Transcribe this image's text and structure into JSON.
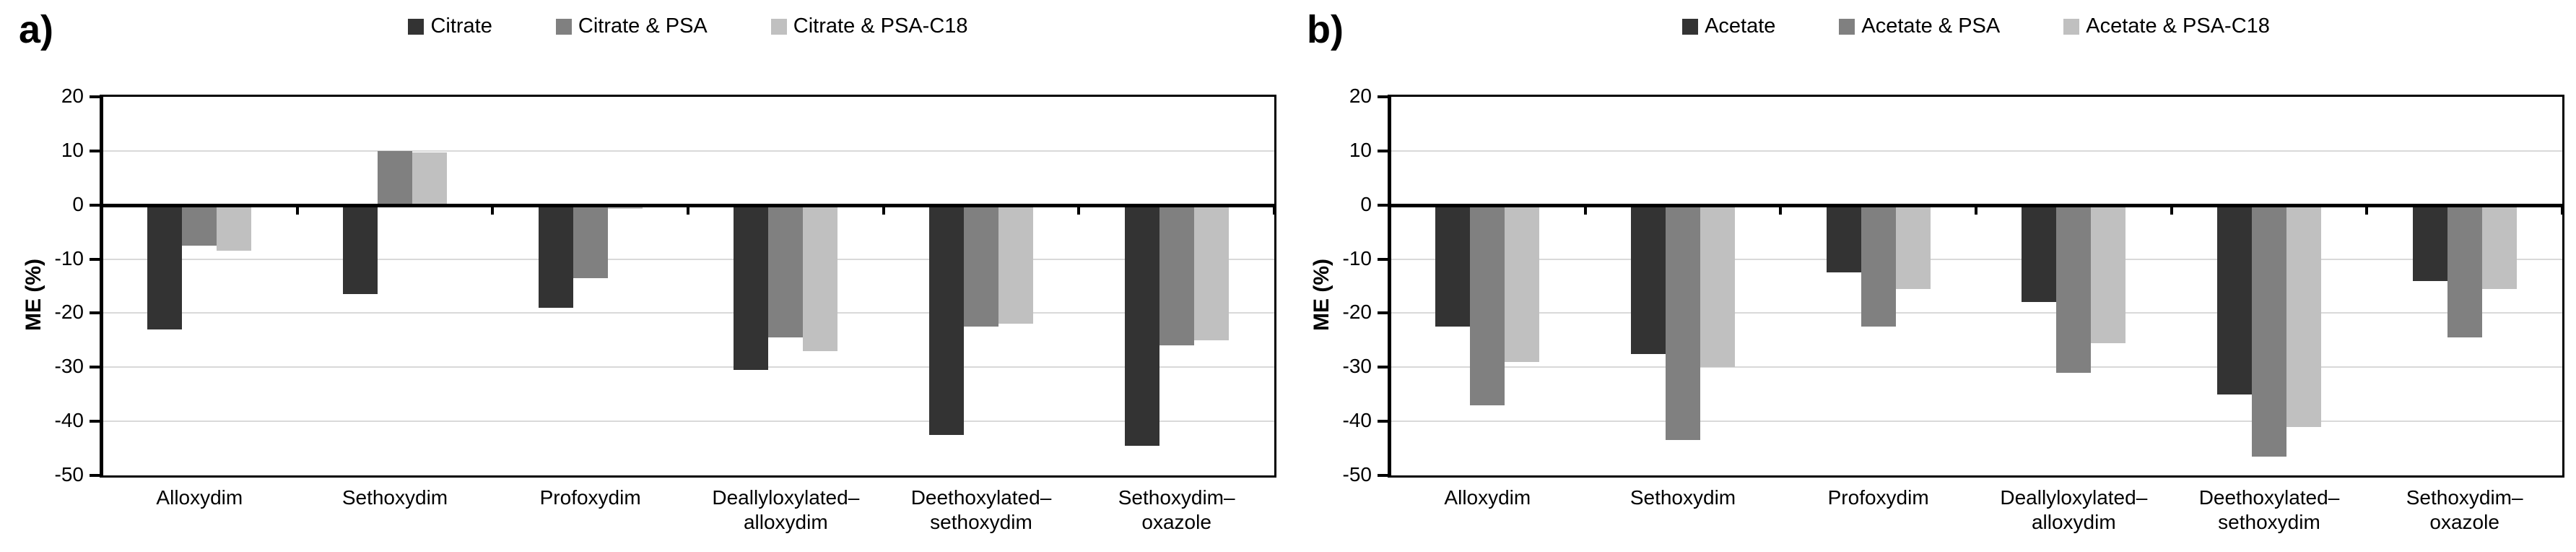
{
  "colors": {
    "series_dark": "#333333",
    "series_mid": "#808080",
    "series_light": "#c0c0c0",
    "gridline": "#d9d9d9",
    "axis": "#000000",
    "background": "#ffffff"
  },
  "chart_data": [
    {
      "type": "bar",
      "panel_label": "a)",
      "ylabel": "ME (%)",
      "ylim": [
        -50,
        20
      ],
      "ytick_step": 10,
      "grid": true,
      "legend_position": "top",
      "yticks": [
        "20",
        "10",
        "0",
        "-10",
        "-20",
        "-30",
        "-40",
        "-50"
      ],
      "categories": [
        "Alloxydim",
        "Sethoxydim",
        "Profoxydim",
        "Deallyloxylated–alloxydim",
        "Deethoxylated–sethoxydim",
        "Sethoxydim–oxazole"
      ],
      "category_label_lines": [
        [
          "Alloxydim"
        ],
        [
          "Sethoxydim"
        ],
        [
          "Profoxydim"
        ],
        [
          "Deallyloxylated–",
          "alloxydim"
        ],
        [
          "Deethoxylated–",
          "sethoxydim"
        ],
        [
          "Sethoxydim–",
          "oxazole"
        ]
      ],
      "series": [
        {
          "name": "Citrate",
          "color": "#333333",
          "values": [
            -23,
            -16.5,
            -19,
            -30.5,
            -42.5,
            -44.5
          ]
        },
        {
          "name": "Citrate & PSA",
          "color": "#808080",
          "values": [
            -7.5,
            10,
            -13.5,
            -24.5,
            -22.5,
            -26
          ]
        },
        {
          "name": "Citrate & PSA-C18",
          "color": "#c0c0c0",
          "values": [
            -8.5,
            9.7,
            -0.7,
            -27,
            -22,
            -25
          ]
        }
      ]
    },
    {
      "type": "bar",
      "panel_label": "b)",
      "ylabel": "ME (%)",
      "ylim": [
        -50,
        20
      ],
      "ytick_step": 10,
      "grid": true,
      "legend_position": "top",
      "yticks": [
        "20",
        "10",
        "0",
        "-10",
        "-20",
        "-30",
        "-40",
        "-50"
      ],
      "categories": [
        "Alloxydim",
        "Sethoxydim",
        "Profoxydim",
        "Deallyloxylated–alloxydim",
        "Deethoxylated–sethoxydim",
        "Sethoxydim–oxazole"
      ],
      "category_label_lines": [
        [
          "Alloxydim"
        ],
        [
          "Sethoxydim"
        ],
        [
          "Profoxydim"
        ],
        [
          "Deallyloxylated–",
          "alloxydim"
        ],
        [
          "Deethoxylated–",
          "sethoxydim"
        ],
        [
          "Sethoxydim–",
          "oxazole"
        ]
      ],
      "series": [
        {
          "name": "Acetate",
          "color": "#333333",
          "values": [
            -22.5,
            -27.5,
            -12.5,
            -18,
            -35,
            -14
          ]
        },
        {
          "name": "Acetate & PSA",
          "color": "#808080",
          "values": [
            -37,
            -43.5,
            -22.5,
            -31,
            -46.5,
            -24.5
          ]
        },
        {
          "name": "Acetate & PSA-C18",
          "color": "#c0c0c0",
          "values": [
            -29,
            -30,
            -15.5,
            -25.5,
            -41,
            -15.5
          ]
        }
      ]
    }
  ]
}
